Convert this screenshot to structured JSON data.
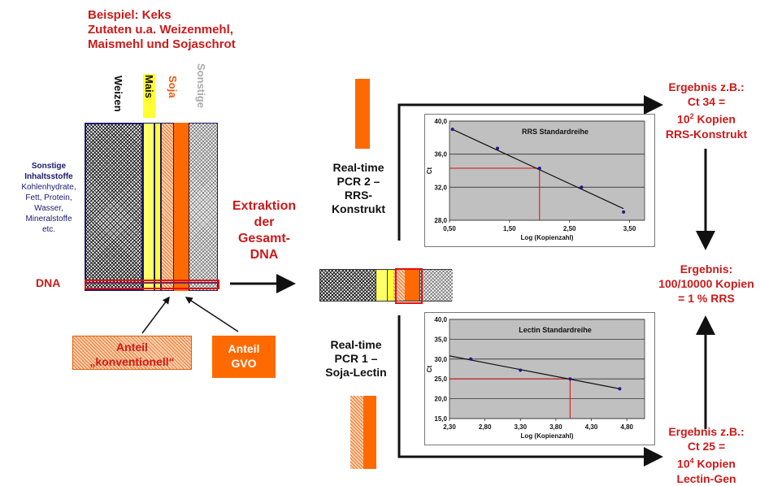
{
  "header": {
    "line1": "Beispiel: Keks",
    "line2": "Zutaten u.a. Weizenmehl,",
    "line3": "Maismehl und Sojaschrot"
  },
  "columns": {
    "weizen": "Weizen",
    "mais": "Mais",
    "soja": "Soja",
    "sonstige": "Sonstige"
  },
  "side_text": {
    "title1": "Sonstige",
    "title2": "Inhaltsstoffe",
    "l1": "Kohlenhydrate,",
    "l2": "Fett, Protein,",
    "l3": "Wasser,",
    "l4": "Mineralstoffe",
    "l5": "etc."
  },
  "dna_label": "DNA",
  "anteil_konv": {
    "l1": "Anteil",
    "l2": "„konventionell“"
  },
  "anteil_gvo": {
    "l1": "Anteil",
    "l2": "GVO"
  },
  "extraktion": {
    "l1": "Extraktion",
    "l2": "der",
    "l3": "Gesamt-",
    "l4": "DNA"
  },
  "pcr2": {
    "l1": "Real-time",
    "l2": "PCR 2 –",
    "l3": "RRS-",
    "l4": "Konstrukt"
  },
  "pcr1": {
    "l1": "Real-time",
    "l2": "PCR 1 –",
    "l3": "Soja-Lectin"
  },
  "result_top": {
    "l1": "Ergebnis z.B.:",
    "l2": "Ct 34 =",
    "l3_base": "10",
    "l3_sup": "2",
    "l3_rest": " Kopien",
    "l4": "RRS-Konstrukt"
  },
  "result_mid": {
    "l1": "Ergebnis:",
    "l2": "100/10000 Kopien",
    "l3": "= 1 % RRS"
  },
  "result_bot": {
    "l1": "Ergebnis z.B.:",
    "l2": "Ct 25 =",
    "l3_base": "10",
    "l3_sup": "4",
    "l3_rest": " Kopien",
    "l4": "Lectin-Gen"
  },
  "colors": {
    "red": "#cc1a1a",
    "orange": "#ff6a00",
    "yellow": "#ffff33",
    "navy": "#1a1a6e",
    "plot_bg": "#c0c0c0"
  },
  "chart_data": [
    {
      "type": "line",
      "title": "RRS Standardreihe",
      "xlabel": "Log (Kopienzahl)",
      "ylabel": "Ct",
      "xlim": [
        0.5,
        3.75
      ],
      "ylim": [
        28.0,
        40.0
      ],
      "xticks": [
        "0,50",
        "1,50",
        "2,50",
        "3,50"
      ],
      "yticks": [
        "28,0",
        "32,0",
        "36,0",
        "40,0"
      ],
      "points": [
        [
          0.55,
          39.0
        ],
        [
          1.3,
          36.7
        ],
        [
          2.0,
          34.3
        ],
        [
          2.7,
          32.0
        ],
        [
          3.4,
          29.0
        ]
      ],
      "trend": [
        [
          0.55,
          39.0
        ],
        [
          3.4,
          29.4
        ]
      ],
      "readout": {
        "x": 2.0,
        "y": 34.3
      },
      "grid": true
    },
    {
      "type": "line",
      "title": "Lectin Standardreihe",
      "xlabel": "Log (Kopienzahl)",
      "ylabel": "Ct",
      "xlim": [
        2.3,
        5.05
      ],
      "ylim": [
        15.0,
        40.0
      ],
      "xticks": [
        "2,30",
        "2,80",
        "3,30",
        "3,80",
        "4,30",
        "4,80"
      ],
      "yticks": [
        "15,0",
        "20,0",
        "25,0",
        "30,0",
        "35,0",
        "40,0"
      ],
      "points": [
        [
          2.6,
          30.0
        ],
        [
          3.3,
          27.2
        ],
        [
          4.0,
          25.0
        ],
        [
          4.7,
          22.5
        ]
      ],
      "trend": [
        [
          2.3,
          30.8
        ],
        [
          4.7,
          22.5
        ]
      ],
      "readout": {
        "x": 4.0,
        "y": 25.0
      },
      "grid": true
    }
  ]
}
